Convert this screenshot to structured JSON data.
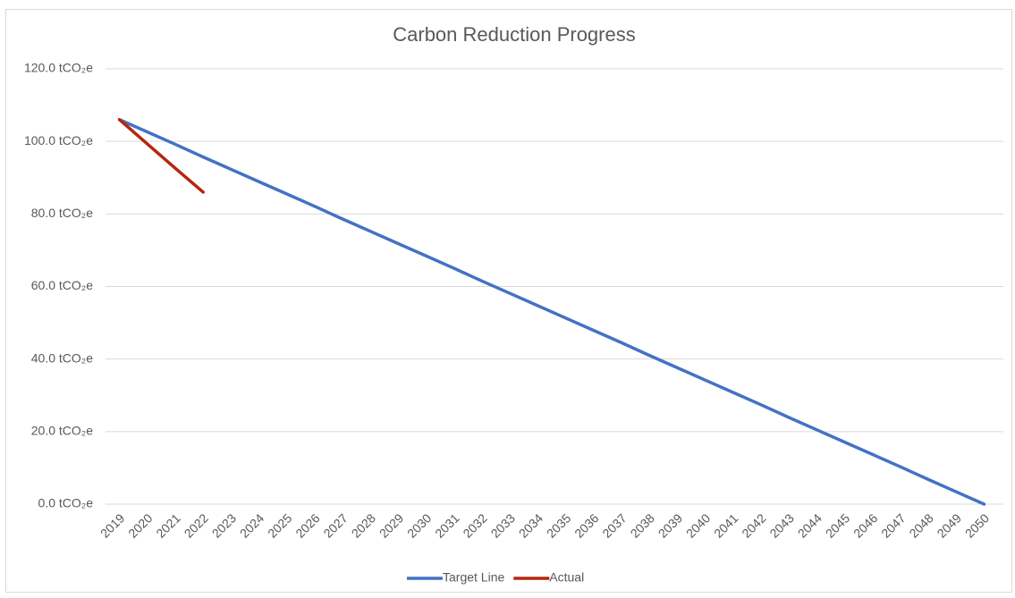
{
  "chart_data": {
    "type": "line",
    "title": "Carbon Reduction Progress",
    "categories": [
      "2019",
      "2020",
      "2021",
      "2022",
      "2023",
      "2024",
      "2025",
      "2026",
      "2027",
      "2028",
      "2029",
      "2030",
      "2031",
      "2032",
      "2033",
      "2034",
      "2035",
      "2036",
      "2037",
      "2038",
      "2039",
      "2040",
      "2041",
      "2042",
      "2043",
      "2044",
      "2045",
      "2046",
      "2047",
      "2048",
      "2049",
      "2050"
    ],
    "series": [
      {
        "name": "Target Line",
        "color": "#4472c4",
        "values": [
          106,
          102.6,
          99.2,
          95.7,
          92.3,
          88.9,
          85.5,
          82.1,
          78.6,
          75.2,
          71.8,
          68.4,
          65.0,
          61.5,
          58.1,
          54.7,
          51.3,
          47.9,
          44.5,
          41.0,
          37.6,
          34.2,
          30.8,
          27.4,
          23.9,
          20.5,
          17.1,
          13.7,
          10.3,
          6.8,
          3.4,
          0
        ]
      },
      {
        "name": "Actual",
        "color": "#b5260f",
        "values": [
          106,
          99.3,
          92.6,
          86,
          null,
          null,
          null,
          null,
          null,
          null,
          null,
          null,
          null,
          null,
          null,
          null,
          null,
          null,
          null,
          null,
          null,
          null,
          null,
          null,
          null,
          null,
          null,
          null,
          null,
          null,
          null,
          null
        ]
      }
    ],
    "ylim": [
      0,
      120
    ],
    "yticks": [
      {
        "value": 0,
        "label": "0.0 tCO₂e"
      },
      {
        "value": 20,
        "label": "20.0 tCO₂e"
      },
      {
        "value": 40,
        "label": "40.0 tCO₂e"
      },
      {
        "value": 60,
        "label": "60.0 tCO₂e"
      },
      {
        "value": 80,
        "label": "80.0 tCO₂e"
      },
      {
        "value": 100,
        "label": "100.0 tCO₂e"
      },
      {
        "value": 120,
        "label": "120.0 tCO₂e"
      }
    ],
    "grid": true,
    "legend": "bottom"
  }
}
